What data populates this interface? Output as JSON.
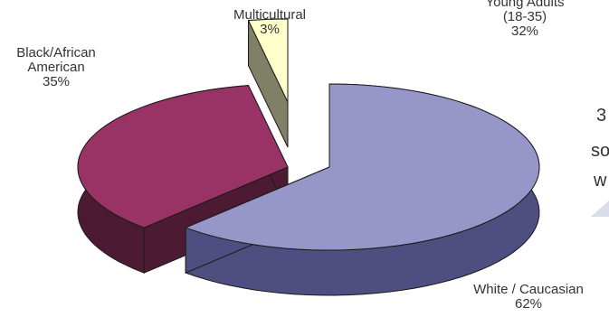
{
  "chart_data": {
    "type": "pie",
    "style": "3d-exploded",
    "slices": [
      {
        "label": "White / Caucasian",
        "value": 62,
        "value_label": "62%",
        "color": "#9696c8",
        "side_color": "#4e4e80"
      },
      {
        "label": "Black/African American",
        "value": 35,
        "value_label": "35%",
        "color": "#993366",
        "side_color": "#4d1a33"
      },
      {
        "label": "Multicultural",
        "value": 3,
        "value_label": "3%",
        "color": "#ffffcc",
        "side_color": "#808066"
      }
    ]
  },
  "labels": {
    "black_line1": "Black/African",
    "black_line2": "American",
    "black_pct": "35%",
    "multi_line1": "Multicultural",
    "multi_pct": "3%",
    "white_line1": "White / Caucasian",
    "white_pct": "62%"
  },
  "right_panel": {
    "young_line1": "Young Adults",
    "young_line2": "(18-35)",
    "young_pct": "32%",
    "frag1": "3",
    "frag2": "so",
    "frag3": "w"
  },
  "colors": {
    "accent_triangle": "#d9dcec"
  }
}
